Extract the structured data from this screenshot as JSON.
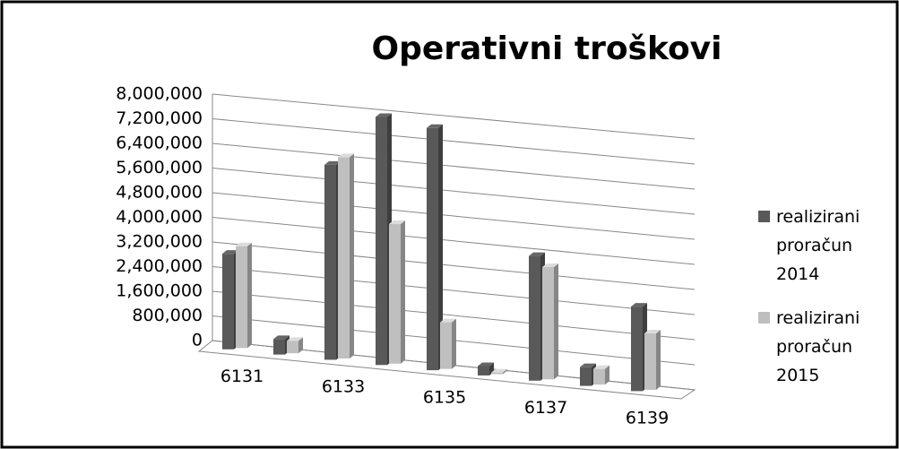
{
  "chart_data": {
    "type": "bar3d",
    "title": "Operativni troškovi",
    "categories": [
      "6131",
      null,
      "6133",
      null,
      "6135",
      null,
      "6137",
      null,
      "6139"
    ],
    "series": [
      {
        "name": "realizirani proračun 2014",
        "color": "#595959",
        "values": [
          3100000,
          500000,
          6300000,
          8000000,
          7800000,
          300000,
          4000000,
          600000,
          2700000
        ]
      },
      {
        "name": "realizirani proračun 2015",
        "color": "#bfbfbf",
        "values": [
          3300000,
          400000,
          6500000,
          4500000,
          1500000,
          50000,
          3600000,
          500000,
          1800000
        ]
      }
    ],
    "ylim": [
      0,
      8000000
    ],
    "yticks": [
      0,
      {
        "value": 800000,
        "label": "800,000"
      },
      {
        "value": 1600000,
        "label": "1,600,000"
      },
      {
        "value": 2400000,
        "label": "2,400,000"
      },
      {
        "value": 3200000,
        "label": "3,200,000"
      },
      {
        "value": 4000000,
        "label": "4,000,000"
      },
      {
        "value": 4800000,
        "label": "4,800,000"
      },
      {
        "value": 5600000,
        "label": "5,600,000"
      },
      {
        "value": 6400000,
        "label": "6,400,000"
      },
      {
        "value": 7200000,
        "label": "7,200,000"
      },
      {
        "value": 8000000,
        "label": "8,000,000"
      }
    ],
    "grid": true,
    "legend": "right"
  }
}
